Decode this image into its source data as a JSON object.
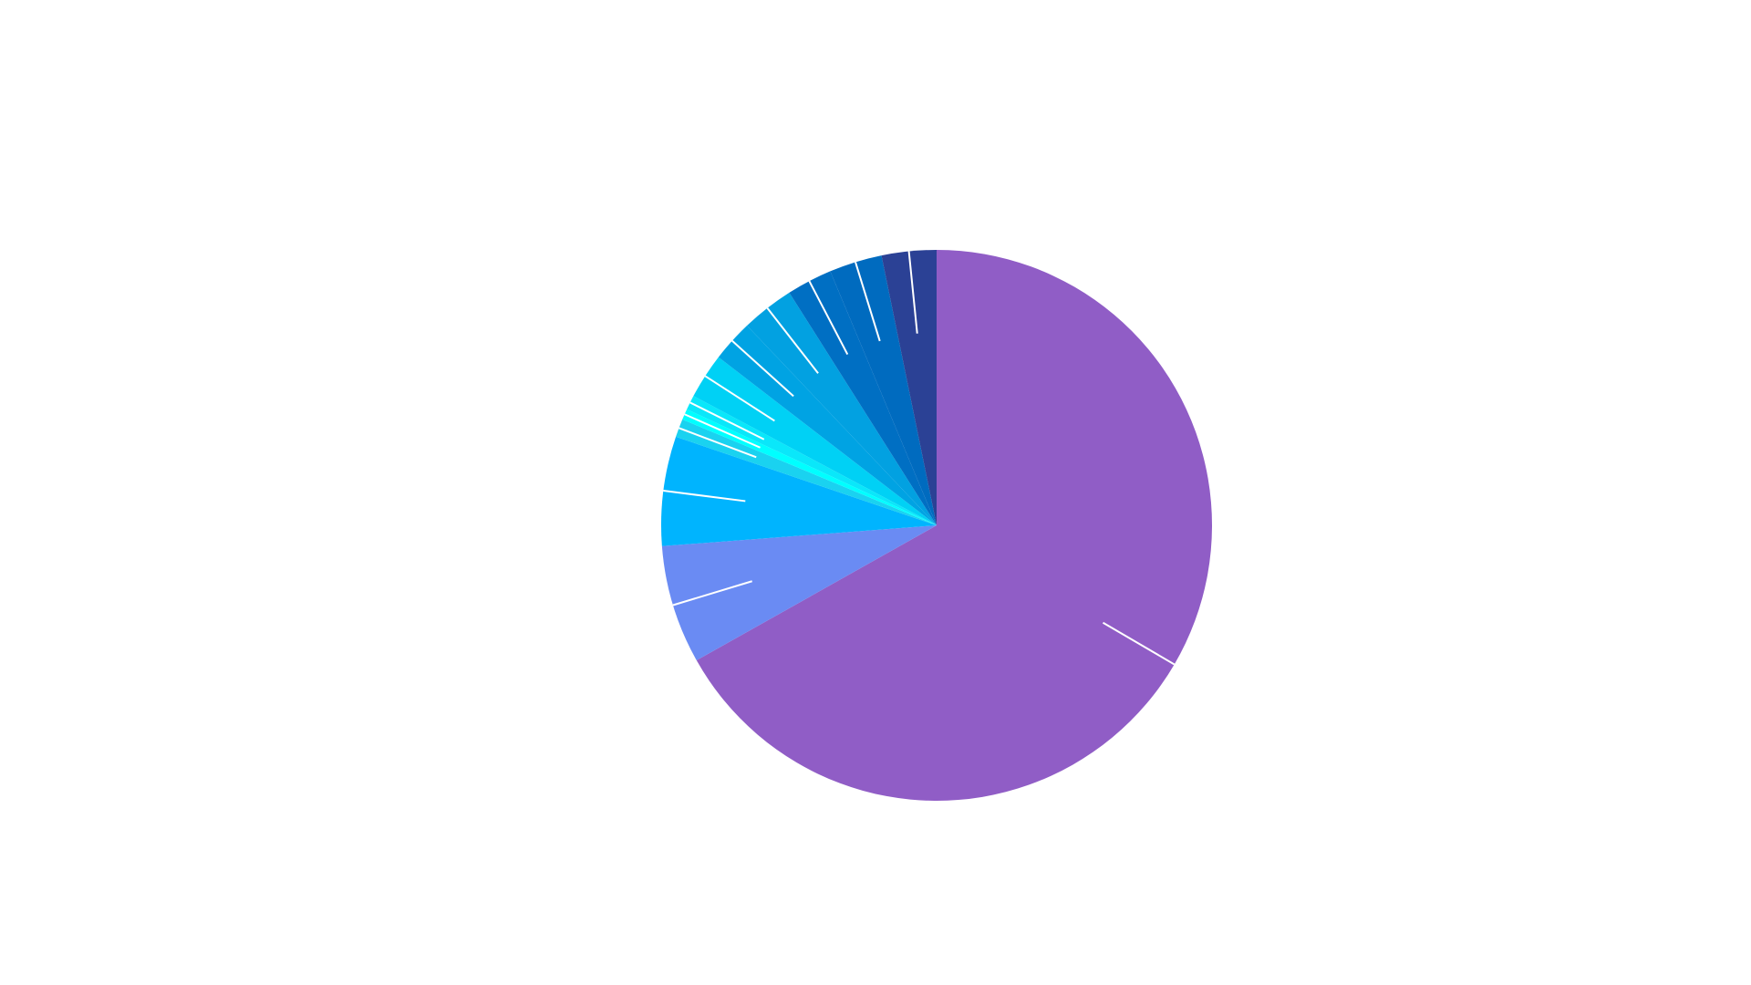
{
  "chart_data": {
    "type": "pie",
    "title": "",
    "legend": "none",
    "series": [
      {
        "values": [
          62.5,
          6.5,
          6.0,
          1.0,
          0.6,
          0.8,
          2.5,
          2.3,
          2.9,
          2.5,
          2.9,
          3.0
        ],
        "colors": [
          "#905DC6",
          "#6A8BF3",
          "#00B4FE",
          "#1AD2F0",
          "#00FFFF",
          "#0AE7FA",
          "#00D1F5",
          "#00A3E3",
          "#02A1E1",
          "#006FC3",
          "#006BBF",
          "#2B4195"
        ]
      }
    ],
    "start_angle_deg": 0,
    "direction": "clockwise",
    "leader_lines": true,
    "leader_color": "#ffffff"
  }
}
